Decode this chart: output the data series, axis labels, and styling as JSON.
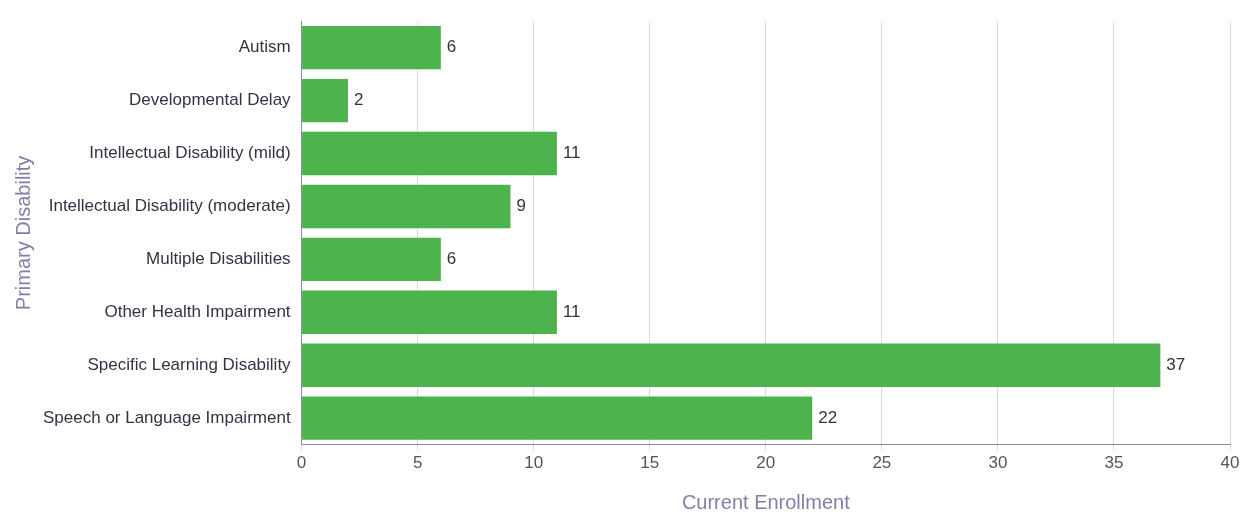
{
  "chart_data": {
    "type": "bar",
    "orientation": "horizontal",
    "categories": [
      "Autism",
      "Developmental Delay",
      "Intellectual Disability (mild)",
      "Intellectual Disability (moderate)",
      "Multiple Disabilities",
      "Other Health Impairment",
      "Specific Learning Disability",
      "Speech or Language Impairment"
    ],
    "values": [
      6,
      2,
      11,
      9,
      6,
      11,
      37,
      22
    ],
    "color": "#4db34d",
    "xlabel": "Current Enrollment",
    "ylabel": "Primary Disability",
    "xlim": [
      0,
      40
    ],
    "xticks": [
      0,
      5,
      10,
      15,
      20,
      25,
      30,
      35,
      40
    ],
    "grid": "x",
    "data_labels": true
  }
}
